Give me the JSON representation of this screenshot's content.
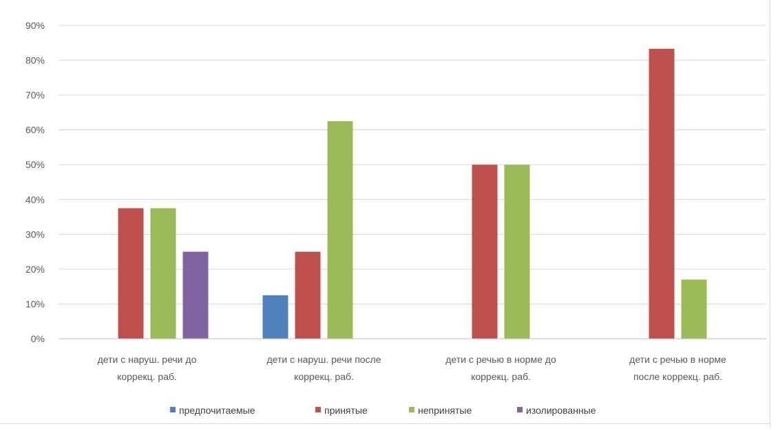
{
  "chart_data": {
    "type": "bar",
    "title": "",
    "xlabel": "",
    "ylabel": "",
    "ylim": [
      0,
      0.9
    ],
    "y_ticks": [
      "0%",
      "10%",
      "20%",
      "30%",
      "40%",
      "50%",
      "60%",
      "70%",
      "80%",
      "90%"
    ],
    "grid": true,
    "legend_position": "bottom",
    "categories": [
      [
        "дети с наруш. речи до",
        "коррекц. раб."
      ],
      [
        "дети с наруш. речи после",
        "коррекц. раб."
      ],
      [
        "дети с речью в норме до",
        "коррекц. раб."
      ],
      [
        "дети с речью в норме",
        "после коррекц. раб."
      ]
    ],
    "series": [
      {
        "name": "предпочитаемые",
        "color": "#4f81bd",
        "values": [
          0,
          0.125,
          0,
          0
        ]
      },
      {
        "name": "принятые",
        "color": "#c0504d",
        "values": [
          0.375,
          0.25,
          0.5,
          0.833
        ]
      },
      {
        "name": "непринятые",
        "color": "#9bbb59",
        "values": [
          0.375,
          0.625,
          0.5,
          0.17
        ]
      },
      {
        "name": "изолированные",
        "color": "#8064a2",
        "values": [
          0.25,
          0,
          0,
          0
        ]
      }
    ]
  }
}
